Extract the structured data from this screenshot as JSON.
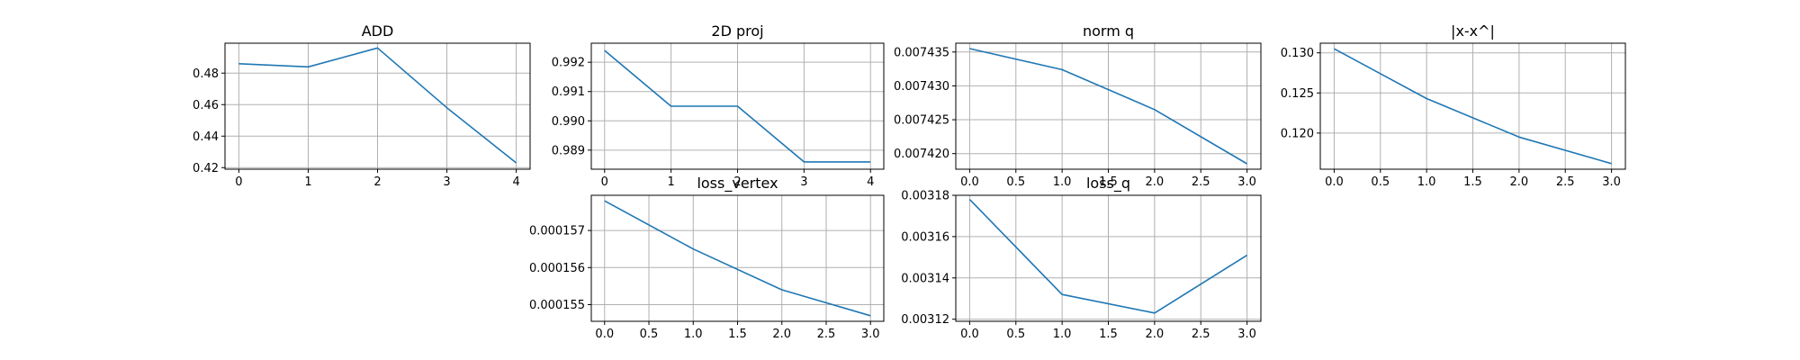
{
  "chart_data": [
    {
      "type": "line",
      "title": "ADD",
      "x": [
        0,
        1,
        2,
        3,
        4
      ],
      "series": [
        {
          "values": [
            0.486,
            0.484,
            0.496,
            0.458,
            0.423
          ]
        }
      ],
      "xlim": [
        -0.2,
        4.2
      ],
      "ylim": [
        0.419,
        0.499
      ],
      "xticks": [
        0,
        1,
        2,
        3,
        4
      ],
      "xtick_labels": [
        "0",
        "1",
        "2",
        "3",
        "4"
      ],
      "yticks": [
        0.42,
        0.44,
        0.46,
        0.48
      ],
      "ytick_labels": [
        "0.42",
        "0.44",
        "0.46",
        "0.48"
      ],
      "grid": true
    },
    {
      "type": "line",
      "title": "2D proj",
      "x": [
        0,
        1,
        2,
        3,
        4
      ],
      "series": [
        {
          "values": [
            0.9924,
            0.9905,
            0.9905,
            0.9886,
            0.9886
          ]
        }
      ],
      "xlim": [
        -0.2,
        4.2
      ],
      "ylim": [
        0.98835,
        0.99265
      ],
      "xticks": [
        0,
        1,
        2,
        3,
        4
      ],
      "xtick_labels": [
        "0",
        "1",
        "2",
        "3",
        "4"
      ],
      "yticks": [
        0.989,
        0.99,
        0.991,
        0.992
      ],
      "ytick_labels": [
        "0.989",
        "0.990",
        "0.991",
        "0.992"
      ],
      "grid": true
    },
    {
      "type": "line",
      "title": "norm q",
      "x": [
        0,
        1,
        2,
        3
      ],
      "series": [
        {
          "values": [
            0.0074355,
            0.0074324,
            0.0074265,
            0.0074185
          ]
        }
      ],
      "xlim": [
        -0.15,
        3.15
      ],
      "ylim": [
        0.0074177,
        0.0074363
      ],
      "xticks": [
        0,
        0.5,
        1,
        1.5,
        2,
        2.5,
        3
      ],
      "xtick_labels": [
        "0.0",
        "0.5",
        "1.0",
        "1.5",
        "2.0",
        "2.5",
        "3.0"
      ],
      "yticks": [
        0.00742,
        0.007425,
        0.00743,
        0.007435
      ],
      "ytick_labels": [
        "0.007420",
        "0.007425",
        "0.007430",
        "0.007435"
      ],
      "grid": true
    },
    {
      "type": "line",
      "title": "|x-x^|",
      "x": [
        0,
        1,
        2,
        3
      ],
      "series": [
        {
          "values": [
            0.1305,
            0.1243,
            0.1195,
            0.1162
          ]
        }
      ],
      "xlim": [
        -0.15,
        3.15
      ],
      "ylim": [
        0.1155,
        0.1312
      ],
      "xticks": [
        0,
        0.5,
        1,
        1.5,
        2,
        2.5,
        3
      ],
      "xtick_labels": [
        "0.0",
        "0.5",
        "1.0",
        "1.5",
        "2.0",
        "2.5",
        "3.0"
      ],
      "yticks": [
        0.12,
        0.125,
        0.13
      ],
      "ytick_labels": [
        "0.120",
        "0.125",
        "0.130"
      ],
      "grid": true
    },
    {
      "type": "line",
      "title": "loss_vertex",
      "x": [
        0,
        1,
        2,
        3
      ],
      "series": [
        {
          "values": [
            0.0001578,
            0.0001565,
            0.0001554,
            0.0001547
          ]
        }
      ],
      "xlim": [
        -0.15,
        3.15
      ],
      "ylim": [
        0.00015455,
        0.00015795
      ],
      "xticks": [
        0,
        0.5,
        1,
        1.5,
        2,
        2.5,
        3
      ],
      "xtick_labels": [
        "0.0",
        "0.5",
        "1.0",
        "1.5",
        "2.0",
        "2.5",
        "3.0"
      ],
      "yticks": [
        0.000155,
        0.000156,
        0.000157
      ],
      "ytick_labels": [
        "0.000155",
        "0.000156",
        "0.000157"
      ],
      "grid": true
    },
    {
      "type": "line",
      "title": "loss_q",
      "x": [
        0,
        1,
        2,
        3
      ],
      "series": [
        {
          "values": [
            0.003178,
            0.003132,
            0.003123,
            0.003151
          ]
        }
      ],
      "xlim": [
        -0.15,
        3.15
      ],
      "ylim": [
        0.003119,
        0.00318
      ],
      "xticks": [
        0,
        0.5,
        1,
        1.5,
        2,
        2.5,
        3
      ],
      "xtick_labels": [
        "0.0",
        "0.5",
        "1.0",
        "1.5",
        "2.0",
        "2.5",
        "3.0"
      ],
      "yticks": [
        0.00312,
        0.00314,
        0.00316,
        0.00318
      ],
      "ytick_labels": [
        "0.00312",
        "0.00314",
        "0.00316",
        "0.00318"
      ],
      "grid": true
    }
  ],
  "colors": {
    "line": "#1f77b4",
    "grid": "#b0b0b0",
    "axes": "#000000",
    "background": "#ffffff"
  }
}
